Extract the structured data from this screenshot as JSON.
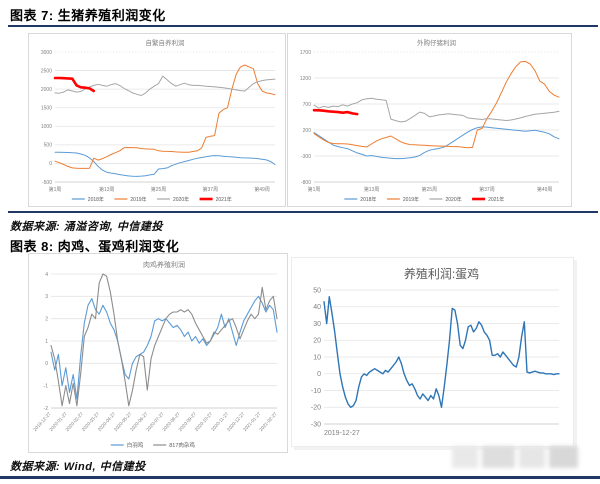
{
  "figure7": {
    "title": "图表 7: 生猪养殖利润变化",
    "source": "数据来源: 涌溢咨询, 中信建投"
  },
  "figure8": {
    "title": "图表 8: 肉鸡、蛋鸡利润变化",
    "source": "数据来源: Wind, 中信建投"
  },
  "colors": {
    "rule": "#1F3864",
    "blue": "#5B9BD5",
    "orange": "#ED7D31",
    "gray": "#A6A6A6",
    "red": "#FF0000",
    "dark_gray": "#8C8C8C",
    "egg_blue": "#2E75B6",
    "grid": "#E3E3E3",
    "axis_text": "#808080",
    "title_text": "#7F7F7F"
  },
  "chart_data": [
    {
      "type": "line",
      "title": "自繁自养利润",
      "ymin": -500,
      "ymax": 3000,
      "yticks": [
        3000,
        2500,
        2000,
        1500,
        1000,
        500,
        0,
        -500
      ],
      "x_count": 52,
      "x_ticks": [
        {
          "pos": 0.0,
          "label": "第1周"
        },
        {
          "pos": 0.2353,
          "label": "第13周"
        },
        {
          "pos": 0.4706,
          "label": "第25周"
        },
        {
          "pos": 0.7059,
          "label": "第37周"
        },
        {
          "pos": 0.9412,
          "label": "第49周"
        }
      ],
      "show_legend": true,
      "series": [
        {
          "name": "2018年",
          "color": "#5B9BD5",
          "width": 1,
          "values": [
            300,
            300,
            298,
            295,
            290,
            280,
            255,
            220,
            150,
            50,
            -80,
            -180,
            -240,
            -260,
            -280,
            -300,
            -320,
            -335,
            -345,
            -350,
            -340,
            -330,
            -310,
            -290,
            -150,
            -140,
            -120,
            -60,
            -20,
            20,
            50,
            80,
            110,
            140,
            160,
            180,
            200,
            210,
            205,
            195,
            185,
            175,
            165,
            155,
            150,
            145,
            140,
            130,
            115,
            95,
            50,
            -30
          ]
        },
        {
          "name": "2019年",
          "color": "#ED7D31",
          "width": 1,
          "values": [
            60,
            20,
            -30,
            -80,
            -120,
            -130,
            -135,
            -135,
            -130,
            140,
            90,
            130,
            180,
            240,
            290,
            340,
            420,
            430,
            425,
            420,
            400,
            390,
            385,
            380,
            340,
            330,
            325,
            320,
            310,
            305,
            300,
            300,
            320,
            340,
            420,
            700,
            730,
            750,
            1350,
            1450,
            1500,
            2000,
            2400,
            2600,
            2650,
            2600,
            2550,
            2150,
            1950,
            1900,
            1880,
            1850
          ]
        },
        {
          "name": "2020年",
          "color": "#A6A6A6",
          "width": 1,
          "values": [
            1900,
            1890,
            1920,
            1980,
            1950,
            1920,
            1940,
            2000,
            2060,
            2100,
            2130,
            2100,
            2080,
            2120,
            2150,
            2100,
            2020,
            1960,
            1900,
            1860,
            1830,
            1900,
            2000,
            2080,
            2150,
            2350,
            2250,
            2150,
            2080,
            2120,
            2160,
            2120,
            2100,
            2100,
            2090,
            2080,
            2070,
            2060,
            2050,
            2040,
            2020,
            2000,
            1980,
            1960,
            1950,
            2050,
            2150,
            2200,
            2230,
            2250,
            2260,
            2270
          ]
        },
        {
          "name": "2021年",
          "color": "#FF0000",
          "width": 2.6,
          "values": [
            2300,
            2300,
            2295,
            2290,
            2280,
            2100,
            2050,
            2040,
            2020,
            1950
          ]
        }
      ]
    },
    {
      "type": "line",
      "title": "外购仔猪利润",
      "ymin": -800,
      "ymax": 1700,
      "yticks": [
        1700,
        1200,
        700,
        200,
        -300,
        -800
      ],
      "x_count": 52,
      "x_ticks": [
        {
          "pos": 0.0,
          "label": "第1周"
        },
        {
          "pos": 0.2353,
          "label": "第13周"
        },
        {
          "pos": 0.4706,
          "label": "第25周"
        },
        {
          "pos": 0.7059,
          "label": "第37周"
        },
        {
          "pos": 0.9412,
          "label": "第49周"
        }
      ],
      "show_legend": true,
      "series": [
        {
          "name": "2018年",
          "color": "#5B9BD5",
          "width": 1,
          "values": [
            150,
            90,
            30,
            -30,
            -90,
            -120,
            -140,
            -160,
            -200,
            -240,
            -270,
            -300,
            -290,
            -310,
            -325,
            -335,
            -345,
            -350,
            -350,
            -345,
            -335,
            -320,
            -290,
            -230,
            -190,
            -170,
            -155,
            -130,
            -80,
            -20,
            40,
            100,
            160,
            210,
            245,
            260,
            255,
            245,
            235,
            225,
            215,
            205,
            195,
            185,
            175,
            185,
            195,
            175,
            155,
            125,
            70,
            30
          ]
        },
        {
          "name": "2019年",
          "color": "#ED7D31",
          "width": 1,
          "values": [
            130,
            70,
            10,
            -40,
            -60,
            -65,
            -65,
            -70,
            -85,
            -100,
            -115,
            -125,
            -70,
            -10,
            30,
            55,
            85,
            30,
            -25,
            -60,
            -80,
            -85,
            -90,
            -95,
            -100,
            -105,
            -110,
            -110,
            -115,
            -120,
            -120,
            -130,
            -140,
            -135,
            200,
            230,
            420,
            560,
            720,
            920,
            1120,
            1280,
            1420,
            1510,
            1520,
            1470,
            1340,
            1140,
            1080,
            940,
            870,
            830
          ]
        },
        {
          "name": "2020年",
          "color": "#A6A6A6",
          "width": 1,
          "values": [
            680,
            620,
            655,
            635,
            660,
            650,
            685,
            660,
            700,
            725,
            780,
            800,
            812,
            790,
            782,
            770,
            410,
            380,
            355,
            365,
            420,
            480,
            545,
            520,
            455,
            470,
            490,
            500,
            512,
            500,
            490,
            480,
            432,
            422,
            412,
            402,
            420,
            412,
            402,
            392,
            382,
            392,
            412,
            432,
            460,
            482,
            502,
            512,
            522,
            532,
            542,
            562
          ]
        },
        {
          "name": "2021年",
          "color": "#FF0000",
          "width": 2.6,
          "values": [
            580,
            578,
            572,
            560,
            552,
            545,
            532,
            545,
            520,
            505
          ]
        }
      ]
    },
    {
      "type": "line",
      "title": "肉鸡养殖利润",
      "ymin": -2,
      "ymax": 4,
      "yticks": [
        4,
        3,
        2,
        1,
        0,
        -1,
        -2
      ],
      "x_count": 62,
      "x_labels": [
        "2019-12-27",
        "2020-01-27",
        "2020-02-27",
        "2020-03-27",
        "2020-04-27",
        "2020-05-27",
        "2020-06-27",
        "2020-07-27",
        "2020-08-27",
        "2020-09-27",
        "2020-10-27",
        "2020-11-27",
        "2020-12-27",
        "2021-01-27",
        "2021-02-27"
      ],
      "show_legend": true,
      "series": [
        {
          "name": "白羽鸡",
          "color": "#5B9BD5",
          "width": 1.1,
          "values": [
            0.5,
            -0.3,
            0.4,
            -1.0,
            -0.2,
            -1.3,
            -0.5,
            -1.6,
            0.3,
            1.8,
            2.6,
            2.9,
            2.4,
            2.2,
            2.6,
            2.3,
            1.8,
            1.5,
            1.0,
            0.2,
            -0.5,
            -0.7,
            0.0,
            0.3,
            0.4,
            0.5,
            0.8,
            1.2,
            1.9,
            2.0,
            1.9,
            2.0,
            1.8,
            1.6,
            1.7,
            1.5,
            1.2,
            1.4,
            1.0,
            1.2,
            0.9,
            1.1,
            0.8,
            1.0,
            1.3,
            1.6,
            2.2,
            1.6,
            2.0,
            1.4,
            0.8,
            1.4,
            1.9,
            2.2,
            2.5,
            2.8,
            3.0,
            2.7,
            2.3,
            2.6,
            2.4,
            1.4
          ]
        },
        {
          "name": "817肉杂鸡",
          "color": "#8C8C8C",
          "width": 1.1,
          "values": [
            0.8,
            0.2,
            -0.8,
            -1.9,
            -1.0,
            -1.8,
            -0.9,
            -1.9,
            -0.5,
            1.2,
            1.6,
            2.2,
            2.0,
            3.6,
            4.0,
            3.9,
            3.2,
            2.2,
            1.0,
            0.2,
            -0.8,
            -1.9,
            -1.2,
            -0.3,
            0.4,
            0.3,
            -1.2,
            0.2,
            0.8,
            1.2,
            1.6,
            2.0,
            2.2,
            2.3,
            2.3,
            2.4,
            2.3,
            2.4,
            2.2,
            1.8,
            1.5,
            1.2,
            0.9,
            1.0,
            1.4,
            1.3,
            1.5,
            1.7,
            1.9,
            2.0,
            1.6,
            1.1,
            1.5,
            1.9,
            2.2,
            2.0,
            2.2,
            3.4,
            2.4,
            2.8,
            3.0,
            2.0
          ]
        }
      ]
    },
    {
      "type": "line",
      "title": "养殖利润:蛋鸡",
      "ymin": -30,
      "ymax": 50,
      "yticks": [
        50,
        40,
        30,
        20,
        10,
        0,
        -10,
        -20,
        -30
      ],
      "x_count": 89,
      "x_ticks": [
        {
          "pos": 0.0,
          "label": "2019-12-27",
          "anchor": "start"
        }
      ],
      "show_legend": false,
      "series": [
        {
          "name": "蛋鸡",
          "color": "#2E75B6",
          "width": 1.4,
          "values": [
            43,
            30,
            46,
            36,
            25,
            12,
            0,
            -8,
            -14,
            -18,
            -20,
            -19,
            -16,
            -8,
            -2,
            0,
            -1,
            1,
            2,
            3,
            2,
            1,
            0,
            2,
            1,
            3,
            5,
            7,
            10,
            6,
            0,
            -4,
            -7,
            -6,
            -9,
            -13,
            -15,
            -12,
            -14,
            -16,
            -13,
            -15,
            -9,
            -13,
            -20,
            -8,
            5,
            20,
            39,
            38,
            30,
            17,
            15,
            20,
            28,
            29,
            25,
            27,
            31,
            29,
            25,
            23,
            20,
            11,
            11,
            12,
            10,
            13,
            11,
            9,
            7,
            5,
            4,
            10,
            22,
            31,
            1,
            0.5,
            1,
            1.5,
            1,
            0.5,
            0.5,
            0,
            0,
            0,
            -0.5,
            0,
            0
          ]
        }
      ]
    }
  ]
}
